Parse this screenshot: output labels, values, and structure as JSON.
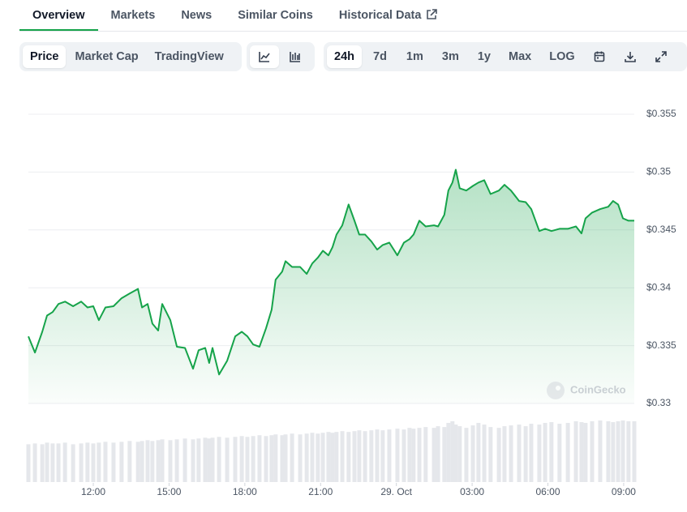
{
  "tabs": [
    "Overview",
    "Markets",
    "News",
    "Similar Coins",
    "Historical Data"
  ],
  "chart_types": [
    "Price",
    "Market Cap",
    "TradingView"
  ],
  "ranges": [
    "24h",
    "7d",
    "1m",
    "3m",
    "1y",
    "Max",
    "LOG"
  ],
  "watermark": "CoinGecko",
  "chart_data": {
    "type": "area",
    "x": [
      9.43,
      9.69,
      9.98,
      10.17,
      10.39,
      10.62,
      10.88,
      11.2,
      11.52,
      11.77,
      12.0,
      12.22,
      12.48,
      12.8,
      13.12,
      13.44,
      13.77,
      13.93,
      14.15,
      14.34,
      14.57,
      14.73,
      15.05,
      15.31,
      15.63,
      15.95,
      16.17,
      16.43,
      16.59,
      16.72,
      16.98,
      17.3,
      17.62,
      17.88,
      18.1,
      18.33,
      18.58,
      18.84,
      19.06,
      19.22,
      19.48,
      19.61,
      19.87,
      20.19,
      20.45,
      20.67,
      20.89,
      21.09,
      21.31,
      21.47,
      21.63,
      21.86,
      22.11,
      22.34,
      22.53,
      22.76,
      23.01,
      23.24,
      23.46,
      23.72,
      24.04,
      24.3,
      24.52,
      24.68,
      24.91,
      25.16,
      25.49,
      25.65,
      25.9,
      26.06,
      26.22,
      26.35,
      26.51,
      26.77,
      27.03,
      27.25,
      27.48,
      27.73,
      28.06,
      28.28,
      28.54,
      28.86,
      29.12,
      29.34,
      29.66,
      29.89,
      30.14,
      30.46,
      30.79,
      31.11,
      31.33,
      31.49,
      31.75,
      32.07,
      32.39,
      32.58,
      32.78,
      32.97,
      33.19,
      33.42
    ],
    "series": [
      {
        "color": "#16a34a",
        "values": [
          0.3358,
          0.3344,
          0.3362,
          0.3376,
          0.3379,
          0.3386,
          0.3388,
          0.3384,
          0.3388,
          0.3383,
          0.3384,
          0.3372,
          0.3383,
          0.3384,
          0.3391,
          0.3395,
          0.3399,
          0.3383,
          0.3386,
          0.3369,
          0.3363,
          0.3386,
          0.3372,
          0.3349,
          0.3348,
          0.333,
          0.3346,
          0.3348,
          0.3335,
          0.3348,
          0.3325,
          0.3337,
          0.3358,
          0.3362,
          0.3358,
          0.3351,
          0.3349,
          0.3365,
          0.3381,
          0.3407,
          0.3414,
          0.3423,
          0.3418,
          0.3418,
          0.3412,
          0.3421,
          0.3426,
          0.3432,
          0.3428,
          0.3435,
          0.3446,
          0.3454,
          0.3472,
          0.3458,
          0.3446,
          0.3446,
          0.344,
          0.3433,
          0.3437,
          0.3439,
          0.3428,
          0.3439,
          0.3442,
          0.3446,
          0.3458,
          0.3453,
          0.3454,
          0.3453,
          0.3463,
          0.3484,
          0.3491,
          0.3502,
          0.3486,
          0.3484,
          0.3488,
          0.3491,
          0.3493,
          0.3481,
          0.3484,
          0.3489,
          0.3484,
          0.3475,
          0.3474,
          0.3468,
          0.3449,
          0.3451,
          0.3449,
          0.3451,
          0.3451,
          0.3453,
          0.3447,
          0.346,
          0.3465,
          0.3468,
          0.347,
          0.3475,
          0.3472,
          0.346,
          0.3458,
          0.3458
        ]
      }
    ],
    "volume": {
      "color": "#e5e7eb",
      "values": [
        46,
        47,
        46,
        48,
        47,
        47,
        48,
        46,
        47,
        48,
        47,
        48,
        49,
        48,
        49,
        50,
        49,
        50,
        51,
        50,
        51,
        52,
        51,
        52,
        53,
        52,
        53,
        54,
        53,
        54,
        55,
        54,
        55,
        56,
        55,
        56,
        57,
        56,
        57,
        58,
        57,
        58,
        59,
        58,
        59,
        60,
        59,
        60,
        61,
        60,
        61,
        62,
        61,
        62,
        63,
        62,
        63,
        64,
        63,
        64,
        65,
        64,
        66,
        65,
        66,
        67,
        66,
        68,
        67,
        72,
        74,
        70,
        68,
        66,
        69,
        72,
        70,
        67,
        66,
        68,
        69,
        70,
        68,
        71,
        70,
        72,
        73,
        71,
        72,
        74,
        73,
        72,
        74,
        75,
        74,
        73,
        74,
        75,
        74,
        74
      ]
    },
    "xlim": [
      9.43,
      33.42
    ],
    "xticks": [
      {
        "value": 12,
        "label": "12:00"
      },
      {
        "value": 15,
        "label": "15:00"
      },
      {
        "value": 18,
        "label": "18:00"
      },
      {
        "value": 21,
        "label": "21:00"
      },
      {
        "value": 24,
        "label": "29. Oct"
      },
      {
        "value": 27,
        "label": "03:00"
      },
      {
        "value": 30,
        "label": "06:00"
      },
      {
        "value": 33,
        "label": "09:00"
      }
    ],
    "ylim": [
      0.33,
      0.355
    ],
    "yticks": [
      {
        "value": 0.33,
        "label": "$0.33"
      },
      {
        "value": 0.335,
        "label": "$0.335"
      },
      {
        "value": 0.34,
        "label": "$0.34"
      },
      {
        "value": 0.345,
        "label": "$0.345"
      },
      {
        "value": 0.35,
        "label": "$0.35"
      },
      {
        "value": 0.355,
        "label": "$0.355"
      }
    ],
    "grid": true
  }
}
